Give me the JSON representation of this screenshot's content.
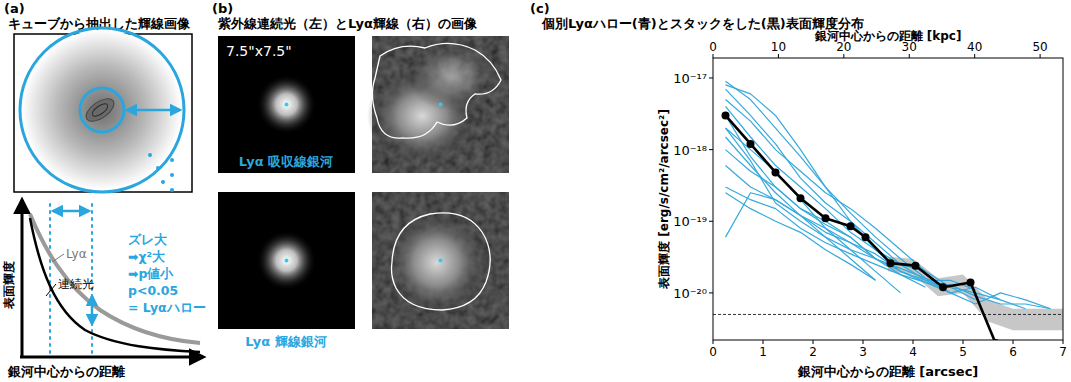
{
  "panel_labels": [
    "(a)",
    "(b)",
    "(c)"
  ],
  "panel_a": {
    "title": "キューブから抽出した輝線画像",
    "y_label": "表面輝度",
    "x_label": "銀河中心からの距離",
    "curve_labels": [
      "Lyα",
      "連続光"
    ],
    "annotation": [
      "ズレ大",
      "➡χ²大",
      "➡p値小",
      "p<0.05",
      "= Lyαハロー"
    ]
  },
  "panel_b": {
    "title": "紫外線連続光（左）とLyα輝線（右）の画像",
    "scale_label": "7.5\"x7.5\"",
    "rows": [
      "Lyα 吸収線銀河",
      "Lyα 輝線銀河"
    ]
  },
  "chart_data": {
    "type": "line",
    "title": "個別Lyαハロー(青)とスタックをした(黒)表面輝度分布",
    "xlabel": "銀河中心からの距離 [arcsec]",
    "x2label": "銀河中心からの距離 [kpc]",
    "ylabel": "表面輝度 [erg/s/cm²/arcsec²]",
    "log": "y",
    "xlim": [
      0,
      7
    ],
    "xticks": [
      0,
      1,
      2,
      3,
      4,
      5,
      6,
      7
    ],
    "x2lim": [
      0,
      53.5
    ],
    "x2ticks": [
      0,
      10,
      20,
      30,
      40,
      50
    ],
    "ylim": [
      2.2e-21,
      1.9e-17
    ],
    "yticks": [
      {
        "value": 1e-20,
        "label": "10⁻²⁰"
      },
      {
        "value": 1e-19,
        "label": "10⁻¹⁹"
      },
      {
        "value": 1e-18,
        "label": "10⁻¹⁸"
      },
      {
        "value": 1e-17,
        "label": "10⁻¹⁷"
      }
    ],
    "threshold": 5e-21,
    "band": {
      "x": [
        3.5,
        4.0,
        4.5,
        5.0,
        5.5,
        6.0,
        6.5,
        7.0
      ],
      "lower": [
        2e-20,
        1.8e-20,
        9e-21,
        1e-20,
        4e-21,
        3e-21,
        3e-21,
        3e-21
      ],
      "upper": [
        3.2e-20,
        3e-20,
        1.6e-20,
        1.8e-20,
        8e-21,
        6e-21,
        6e-21,
        6e-21
      ]
    },
    "series": [
      {
        "color": "#35a9dc",
        "x": [
          0.25,
          0.75,
          1.25,
          1.75,
          2.25,
          2.75,
          3.25,
          3.75,
          4.25,
          4.75,
          5.25,
          5.75,
          6.25,
          6.75
        ],
        "values": [
          9e-18,
          5e-18,
          2e-18,
          8e-19,
          3e-19,
          1.3e-19,
          6e-20,
          3e-20,
          1.6e-20,
          1e-20,
          null,
          null,
          null,
          null
        ]
      },
      {
        "color": "#35a9dc",
        "x": [
          0.25,
          0.75,
          1.25,
          1.75,
          2.25,
          2.75,
          3.25,
          3.75,
          4.25,
          4.75,
          5.25,
          5.75,
          6.25,
          6.75
        ],
        "values": [
          7e-18,
          3e-18,
          1.2e-18,
          4e-19,
          1.8e-19,
          1e-19,
          5e-20,
          2.5e-20,
          2e-20,
          1.2e-20,
          8e-21,
          null,
          null,
          null
        ]
      },
      {
        "color": "#35a9dc",
        "x": [
          0.25,
          0.75,
          1.25,
          1.75,
          2.25,
          2.75,
          3.25,
          3.75,
          4.25,
          4.75,
          5.25,
          5.75,
          6.25,
          6.75
        ],
        "values": [
          5e-18,
          2.5e-18,
          1e-18,
          5e-19,
          2.5e-19,
          1.5e-19,
          8e-20,
          4e-20,
          2e-20,
          null,
          null,
          null,
          null,
          null
        ]
      },
      {
        "color": "#35a9dc",
        "x": [
          0.25,
          0.75,
          1.25,
          1.75,
          2.25,
          2.75,
          3.25,
          3.75,
          4.25,
          4.75,
          5.25,
          5.75,
          6.25,
          6.75
        ],
        "values": [
          4e-18,
          1.5e-18,
          6e-19,
          3e-19,
          1.5e-19,
          7e-20,
          4e-20,
          2.5e-20,
          1.5e-20,
          1e-20,
          1.2e-20,
          8e-21,
          6e-21,
          null
        ]
      },
      {
        "color": "#35a9dc",
        "x": [
          0.25,
          0.75,
          1.25,
          1.75,
          2.25,
          2.75,
          3.25,
          3.75,
          4.25,
          4.75,
          5.25,
          5.75,
          6.25,
          6.75
        ],
        "values": [
          3e-18,
          8e-19,
          3e-19,
          1.5e-19,
          9e-20,
          6e-20,
          3e-20,
          1.8e-20,
          1.2e-20,
          null,
          null,
          null,
          null,
          null
        ]
      },
      {
        "color": "#35a9dc",
        "x": [
          0.25,
          0.75,
          1.25,
          1.75,
          2.25,
          2.75,
          3.25,
          3.75,
          4.25,
          4.75,
          5.25,
          5.75,
          6.25,
          6.75
        ],
        "values": [
          2e-18,
          1e-18,
          5e-19,
          2e-19,
          8e-20,
          4e-20,
          2e-20,
          1e-20,
          null,
          null,
          null,
          null,
          null,
          null
        ]
      },
      {
        "color": "#35a9dc",
        "x": [
          0.25,
          0.75,
          1.25,
          1.75,
          2.25,
          2.75,
          3.25,
          3.75,
          4.25,
          4.75,
          5.25,
          5.75,
          6.25,
          6.75
        ],
        "values": [
          1.5e-18,
          6e-19,
          2.5e-19,
          1.2e-19,
          7e-20,
          5e-20,
          3.5e-20,
          2e-20,
          1.4e-20,
          1e-20,
          7e-21,
          1e-20,
          8e-21,
          6e-21
        ]
      },
      {
        "color": "#35a9dc",
        "x": [
          0.25,
          0.75,
          1.25,
          1.75,
          2.25,
          2.75,
          3.25,
          3.75,
          4.25,
          4.75,
          5.25,
          5.75,
          6.25,
          6.75
        ],
        "values": [
          1e-18,
          5e-19,
          3e-19,
          1.5e-19,
          1e-19,
          6e-20,
          3e-20,
          null,
          null,
          null,
          null,
          null,
          null,
          null
        ]
      },
      {
        "color": "#35a9dc",
        "x": [
          0.25,
          0.75,
          1.25,
          1.75,
          2.25,
          2.75,
          3.25,
          3.75,
          4.25,
          4.75,
          5.25,
          5.75,
          6.25,
          6.75
        ],
        "values": [
          6e-19,
          3e-19,
          2e-19,
          1.2e-19,
          8e-20,
          5e-20,
          3e-20,
          2e-20,
          null,
          null,
          null,
          null,
          null,
          null
        ]
      },
      {
        "color": "#35a9dc",
        "x": [
          0.25,
          0.75,
          1.25,
          1.75,
          2.25,
          2.75,
          3.25,
          3.75,
          4.25,
          4.75,
          5.25,
          5.75,
          6.25,
          6.75
        ],
        "values": [
          2.5e-19,
          1.5e-19,
          1e-19,
          7e-20,
          4e-20,
          2.5e-20,
          1.5e-20,
          null,
          null,
          null,
          null,
          null,
          null,
          null
        ]
      },
      {
        "color": "#35a9dc",
        "x": [
          0.25,
          0.75,
          1.25,
          1.75,
          2.25,
          2.75,
          3.25,
          3.75,
          4.25,
          4.75,
          5.25,
          5.75,
          6.25,
          6.75
        ],
        "values": [
          6e-20,
          2.5e-19,
          2e-19,
          1.2e-19,
          6e-20,
          3e-20,
          1.5e-20,
          null,
          null,
          null,
          null,
          null,
          null,
          null
        ]
      },
      {
        "color": "#35a9dc",
        "x": [
          0.25,
          0.75,
          1.25,
          1.75,
          2.25,
          2.75,
          3.25,
          3.75,
          4.25,
          4.75,
          5.25,
          5.75,
          6.25,
          6.75
        ],
        "values": [
          8e-18,
          6e-18,
          3e-18,
          1e-18,
          3e-19,
          1e-19,
          4e-20,
          2e-20,
          1.5e-20,
          1.5e-20,
          1.1e-20,
          null,
          null,
          null
        ]
      },
      {
        "color": "#35a9dc",
        "x": [
          0.25,
          0.75,
          1.25,
          1.75,
          2.25,
          2.75,
          3.25,
          3.75,
          4.25,
          4.75,
          5.25,
          5.75,
          6.25,
          6.75
        ],
        "values": [
          3e-19,
          2e-19,
          1.5e-19,
          8e-20,
          5e-20,
          3.5e-20,
          2.5e-20,
          1.8e-20,
          1.4e-20,
          1.3e-20,
          9e-21,
          7e-21,
          7e-21,
          6e-21
        ]
      },
      {
        "color": "#35a9dc",
        "x": [
          0.25,
          0.75,
          1.25,
          1.75,
          2.25,
          2.75,
          3.25,
          3.75,
          4.25,
          4.75,
          5.25,
          5.75,
          6.25,
          6.75
        ],
        "values": [
          2e-18,
          7e-19,
          1.8e-19,
          1e-19,
          6e-20,
          4e-20,
          3e-20,
          2.2e-20,
          1.6e-20,
          1.2e-20,
          1e-20,
          8e-21,
          null,
          null
        ]
      },
      {
        "color": "#000000",
        "marker": "circle",
        "x": [
          0.25,
          0.75,
          1.25,
          1.75,
          2.25,
          2.75,
          3.05,
          3.55,
          4.05,
          4.6,
          5.15,
          5.65
        ],
        "values": [
          3e-18,
          1.2e-18,
          4.8e-19,
          2.1e-19,
          1.1e-19,
          8.5e-20,
          6e-20,
          2.6e-20,
          2.4e-20,
          1.2e-20,
          1.4e-20,
          2e-21
        ]
      }
    ]
  }
}
